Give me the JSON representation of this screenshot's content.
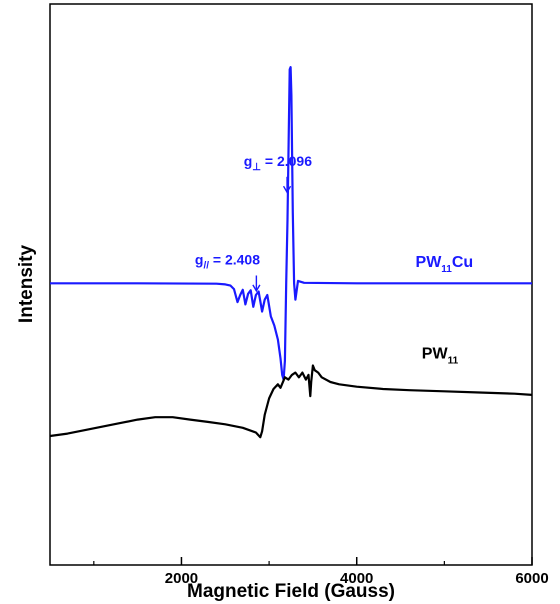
{
  "chart_data": {
    "type": "line",
    "xlabel": "Magnetic Field (Gauss)",
    "ylabel": "Intensity",
    "xlim": [
      500,
      6000
    ],
    "ylim": [
      -1,
      1
    ],
    "x_ticks": [
      {
        "value": 2000,
        "label": "2000"
      },
      {
        "value": 4000,
        "label": "4000"
      },
      {
        "value": 6000,
        "label": "6000"
      }
    ],
    "x_minor_ticks": [
      1000,
      3000,
      5000
    ],
    "y_tick_labels": false,
    "grid": false,
    "legend": "none",
    "colors": {
      "pw11cu": "#1a1aff",
      "pw11": "#000000"
    },
    "series": [
      {
        "name": "PW11Cu",
        "label_base": "PW",
        "label_sub": "11",
        "label_tail": "Cu",
        "color": "#1a1aff",
        "points": [
          [
            500,
            0.05
          ],
          [
            1500,
            0.05
          ],
          [
            2400,
            0.048
          ],
          [
            2500,
            0.045
          ],
          [
            2560,
            0.04
          ],
          [
            2600,
            0.025
          ],
          [
            2640,
            -0.03
          ],
          [
            2670,
            0.0
          ],
          [
            2700,
            0.022
          ],
          [
            2730,
            -0.04
          ],
          [
            2760,
            0.005
          ],
          [
            2790,
            0.02
          ],
          [
            2820,
            -0.05
          ],
          [
            2850,
            0.0
          ],
          [
            2880,
            0.015
          ],
          [
            2920,
            -0.07
          ],
          [
            2950,
            -0.02
          ],
          [
            2980,
            0.0
          ],
          [
            3020,
            -0.09
          ],
          [
            3060,
            -0.13
          ],
          [
            3100,
            -0.19
          ],
          [
            3130,
            -0.27
          ],
          [
            3150,
            -0.34
          ],
          [
            3165,
            -0.36
          ],
          [
            3180,
            -0.28
          ],
          [
            3195,
            0.05
          ],
          [
            3210,
            0.32
          ],
          [
            3225,
            0.7
          ],
          [
            3235,
            0.96
          ],
          [
            3245,
            0.97
          ],
          [
            3255,
            0.85
          ],
          [
            3270,
            0.35
          ],
          [
            3285,
            0.05
          ],
          [
            3300,
            -0.02
          ],
          [
            3330,
            0.06
          ],
          [
            3400,
            0.052
          ],
          [
            4000,
            0.05
          ],
          [
            5000,
            0.05
          ],
          [
            6000,
            0.05
          ]
        ]
      },
      {
        "name": "PW11",
        "label_base": "PW",
        "label_sub": "11",
        "label_tail": "",
        "color": "#000000",
        "points": [
          [
            500,
            -0.6
          ],
          [
            700,
            -0.59
          ],
          [
            900,
            -0.575
          ],
          [
            1100,
            -0.56
          ],
          [
            1300,
            -0.545
          ],
          [
            1500,
            -0.53
          ],
          [
            1700,
            -0.52
          ],
          [
            1900,
            -0.52
          ],
          [
            2100,
            -0.53
          ],
          [
            2300,
            -0.54
          ],
          [
            2500,
            -0.55
          ],
          [
            2700,
            -0.565
          ],
          [
            2850,
            -0.585
          ],
          [
            2900,
            -0.605
          ],
          [
            2920,
            -0.58
          ],
          [
            2950,
            -0.51
          ],
          [
            3000,
            -0.44
          ],
          [
            3050,
            -0.4
          ],
          [
            3100,
            -0.38
          ],
          [
            3130,
            -0.395
          ],
          [
            3180,
            -0.35
          ],
          [
            3220,
            -0.36
          ],
          [
            3260,
            -0.34
          ],
          [
            3300,
            -0.33
          ],
          [
            3340,
            -0.35
          ],
          [
            3380,
            -0.33
          ],
          [
            3420,
            -0.36
          ],
          [
            3450,
            -0.34
          ],
          [
            3470,
            -0.43
          ],
          [
            3480,
            -0.37
          ],
          [
            3500,
            -0.3
          ],
          [
            3520,
            -0.32
          ],
          [
            3560,
            -0.33
          ],
          [
            3600,
            -0.35
          ],
          [
            3700,
            -0.37
          ],
          [
            3800,
            -0.38
          ],
          [
            4000,
            -0.39
          ],
          [
            4300,
            -0.4
          ],
          [
            4600,
            -0.405
          ],
          [
            5000,
            -0.41
          ],
          [
            5400,
            -0.415
          ],
          [
            5800,
            -0.42
          ],
          [
            6000,
            -0.425
          ]
        ]
      }
    ],
    "annotations": [
      {
        "id": "g-perp",
        "prefix": "g",
        "sub": "⊥",
        "rest": " = 2.096",
        "x": 3215,
        "y": 0.52
      },
      {
        "id": "g-par",
        "prefix": "g",
        "sub": "//",
        "rest": " = 2.408",
        "x": 2850,
        "y": 0.09
      }
    ]
  }
}
